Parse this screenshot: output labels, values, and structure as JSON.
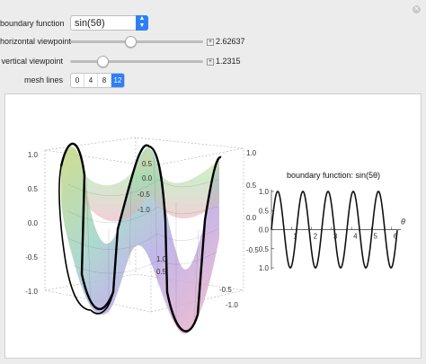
{
  "controls": {
    "boundary_function": {
      "label": "boundary function",
      "value": "sin(5θ)"
    },
    "horizontal_viewpoint": {
      "label": "horizontal viewpoint",
      "value": "2.62637",
      "fraction": 0.45
    },
    "vertical_viewpoint": {
      "label": "vertical viewpoint",
      "value": "1.2315",
      "fraction": 0.24
    },
    "mesh_lines": {
      "label": "mesh lines",
      "options": [
        "0",
        "4",
        "8",
        "12"
      ],
      "selected": "12"
    }
  },
  "plot3d": {
    "ticks_front": [
      "1.0",
      "0.5",
      "0.0",
      "-0.5",
      "-1.0"
    ],
    "ticks_back": [
      "0.5",
      "0.0",
      "-0.5",
      "-1.0"
    ],
    "ticks_right": [
      "1.0",
      "0.5",
      "0.0",
      "-0.5",
      "-1.0"
    ]
  },
  "chart_data": {
    "type": "line",
    "title": "boundary function: sin(5θ)",
    "xlabel": "θ",
    "ylabel": "",
    "xlim": [
      0,
      6.28
    ],
    "ylim": [
      -1,
      1
    ],
    "x_ticks": [
      "1",
      "2",
      "3",
      "4",
      "5",
      "6"
    ],
    "y_ticks": [
      "1.0",
      "0.5",
      "0.0",
      "0.5",
      "1.0"
    ],
    "function": "sin(5θ)",
    "frequency": 5,
    "color": "#111111"
  },
  "colors": {
    "accent": "#2d7ff9"
  }
}
